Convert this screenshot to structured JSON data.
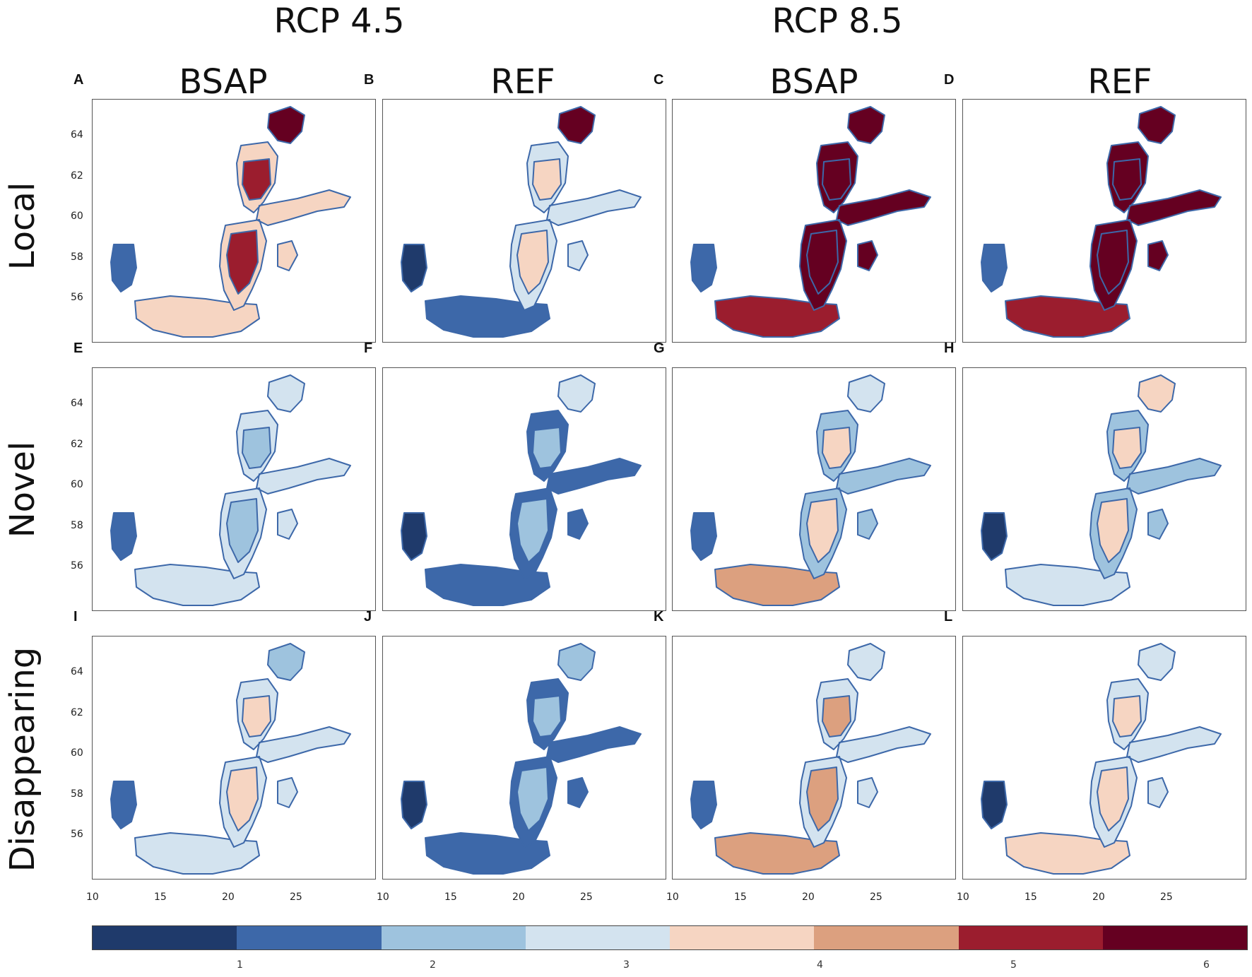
{
  "scenarios": [
    "RCP 4.5",
    "RCP 8.5"
  ],
  "columns": [
    "BSAP",
    "REF",
    "BSAP",
    "REF"
  ],
  "rows": [
    "Local",
    "Novel",
    "Disappearing"
  ],
  "panel_letters": [
    "A",
    "B",
    "C",
    "D",
    "E",
    "F",
    "G",
    "H",
    "I",
    "J",
    "K",
    "L"
  ],
  "y_ticks": [
    "64",
    "62",
    "60",
    "58",
    "56"
  ],
  "x_ticks": [
    "10",
    "15",
    "20",
    "25"
  ],
  "colorbar": {
    "colors": [
      "#1f3a6b",
      "#3d68a9",
      "#9ec3de",
      "#d3e3ef",
      "#f6d5c2",
      "#dca07f",
      "#9b1d2e",
      "#650021"
    ],
    "ticks": [
      "1",
      "2",
      "3",
      "4",
      "5",
      "6"
    ]
  },
  "panel_fill": {
    "A": {
      "sea": "#f6d5c2",
      "main": "#9b1d2e",
      "north": "#650021",
      "south": "#f6d5c2",
      "kattegat": "#3d68a9"
    },
    "B": {
      "sea": "#d3e3ef",
      "main": "#f6d5c2",
      "north": "#650021",
      "south": "#3d68a9",
      "kattegat": "#1f3a6b"
    },
    "C": {
      "sea": "#650021",
      "main": "#650021",
      "north": "#650021",
      "south": "#9b1d2e",
      "kattegat": "#3d68a9"
    },
    "D": {
      "sea": "#650021",
      "main": "#650021",
      "north": "#650021",
      "south": "#9b1d2e",
      "kattegat": "#3d68a9"
    },
    "E": {
      "sea": "#d3e3ef",
      "main": "#9ec3de",
      "north": "#d3e3ef",
      "south": "#d3e3ef",
      "kattegat": "#3d68a9"
    },
    "F": {
      "sea": "#3d68a9",
      "main": "#9ec3de",
      "north": "#d3e3ef",
      "south": "#3d68a9",
      "kattegat": "#1f3a6b"
    },
    "G": {
      "sea": "#9ec3de",
      "main": "#f6d5c2",
      "north": "#d3e3ef",
      "south": "#dca07f",
      "kattegat": "#3d68a9"
    },
    "H": {
      "sea": "#9ec3de",
      "main": "#f6d5c2",
      "north": "#f6d5c2",
      "south": "#d3e3ef",
      "kattegat": "#1f3a6b"
    },
    "I": {
      "sea": "#d3e3ef",
      "main": "#f6d5c2",
      "north": "#9ec3de",
      "south": "#d3e3ef",
      "kattegat": "#3d68a9"
    },
    "J": {
      "sea": "#3d68a9",
      "main": "#9ec3de",
      "north": "#9ec3de",
      "south": "#3d68a9",
      "kattegat": "#1f3a6b"
    },
    "K": {
      "sea": "#d3e3ef",
      "main": "#dca07f",
      "north": "#d3e3ef",
      "south": "#dca07f",
      "kattegat": "#3d68a9"
    },
    "L": {
      "sea": "#d3e3ef",
      "main": "#f6d5c2",
      "north": "#d3e3ef",
      "south": "#f6d5c2",
      "kattegat": "#1f3a6b"
    }
  }
}
